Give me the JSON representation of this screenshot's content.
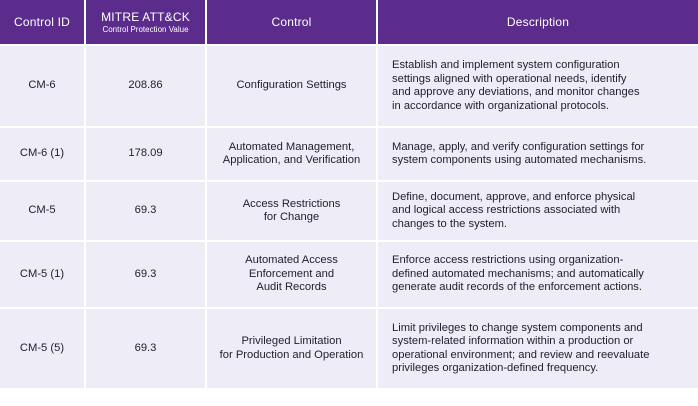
{
  "headers": {
    "control_id": "Control ID",
    "value_main": "MITRE ATT&CK",
    "value_sub": "Control Protection Value",
    "control": "Control",
    "description": "Description"
  },
  "rows": [
    {
      "id": "CM-6",
      "value": "208.86",
      "control": [
        "Configuration Settings"
      ],
      "description": [
        "Establish and implement system configuration",
        "settings aligned with operational needs, identify",
        "and approve any deviations, and monitor changes",
        "in accordance with organizational protocols."
      ]
    },
    {
      "id": "CM-6 (1)",
      "value": "178.09",
      "control": [
        "Automated Management,",
        "Application, and Verification"
      ],
      "description": [
        "Manage, apply, and verify configuration settings for",
        "system components using automated mechanisms."
      ]
    },
    {
      "id": "CM-5",
      "value": "69.3",
      "control": [
        "Access Restrictions",
        "for Change"
      ],
      "description": [
        "Define, document, approve, and enforce physical",
        "and logical access restrictions associated with",
        "changes to the system."
      ]
    },
    {
      "id": "CM-5 (1)",
      "value": "69.3",
      "control": [
        "Automated Access",
        "Enforcement and",
        "Audit Records"
      ],
      "description": [
        "Enforce access restrictions using organization-",
        "defined automated mechanisms; and automatically",
        "generate audit records of the enforcement actions."
      ]
    },
    {
      "id": "CM-5 (5)",
      "value": "69.3",
      "control": [
        "Privileged Limitation",
        "for Production and Operation"
      ],
      "description": [
        "Limit privileges to change system components and",
        "system-related information within a production or",
        "operational environment; and review and reevaluate",
        "privileges organization-defined frequency."
      ]
    }
  ]
}
